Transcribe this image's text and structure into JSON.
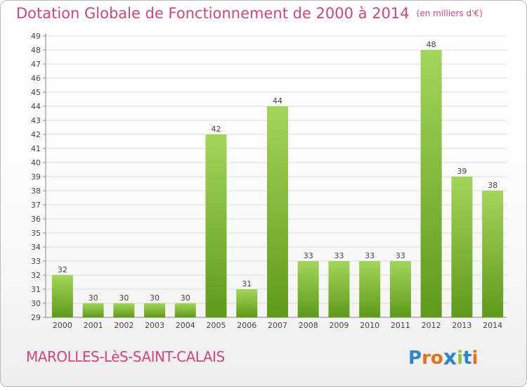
{
  "header": {
    "title": "Dotation Globale de Fonctionnement de 2000 à 2014",
    "unit": "(en milliers d'€)"
  },
  "footer": {
    "commune": "MAROLLES-LèS-SAINT-CALAIS",
    "logo_text": "Proxiti"
  },
  "colors": {
    "title": "#d0457a",
    "bar_top": "#a3d55a",
    "bar_bottom": "#5f9a1a",
    "grid": "#dcdcdc",
    "logo_letters": [
      "#2e86c9",
      "#e8701a",
      "#e8701a",
      "#2e86c9",
      "#8cc63f",
      "#2e86c9",
      "#e8701a"
    ]
  },
  "chart_data": {
    "type": "bar",
    "title": "Dotation Globale de Fonctionnement de 2000 à 2014",
    "subtitle": "(en milliers d'€)",
    "categories": [
      "2000",
      "2001",
      "2002",
      "2003",
      "2004",
      "2005",
      "2006",
      "2007",
      "2008",
      "2009",
      "2010",
      "2011",
      "2012",
      "2013",
      "2014"
    ],
    "values": [
      32,
      30,
      30,
      30,
      30,
      42,
      31,
      44,
      33,
      33,
      33,
      33,
      48,
      39,
      38
    ],
    "ylim": [
      29,
      49
    ],
    "ytick_step": 1,
    "grid": true,
    "legend": false,
    "data_labels": true
  }
}
